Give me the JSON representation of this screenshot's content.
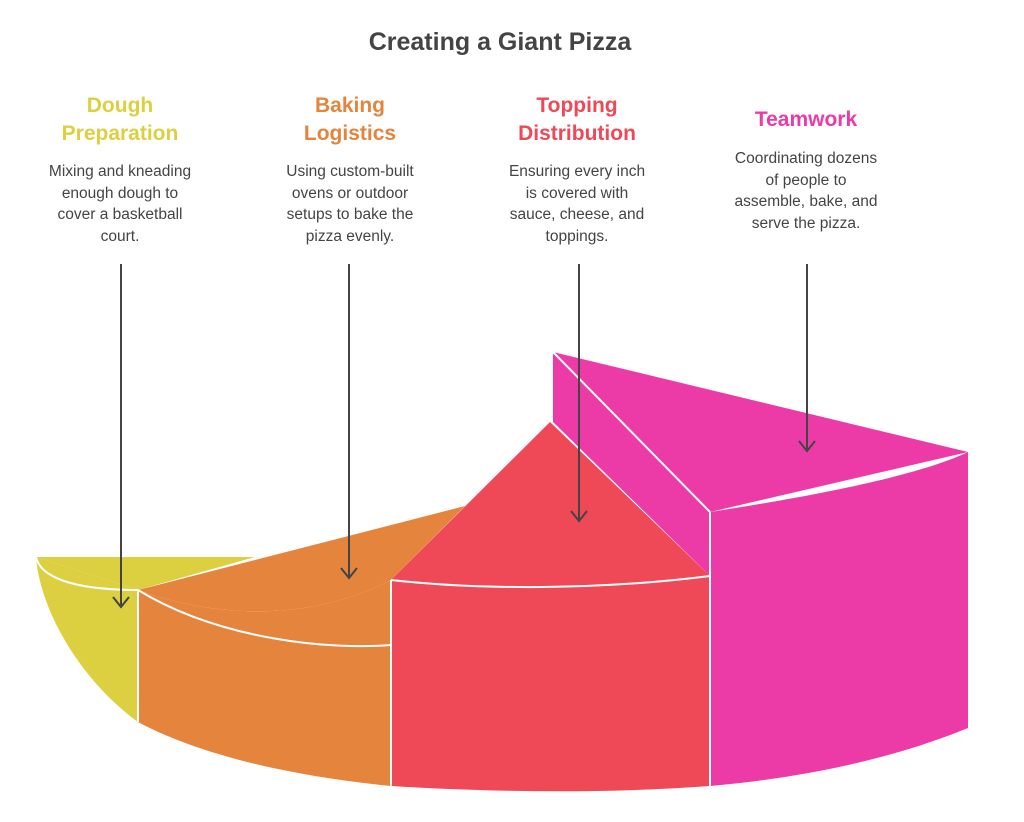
{
  "title": "Creating a Giant Pizza",
  "steps": [
    {
      "heading_line1": "Dough",
      "heading_line2": "Preparation",
      "desc_lines": [
        "Mixing and kneading",
        "enough dough to",
        "cover a basketball",
        "court."
      ],
      "color": "#DDD040",
      "side_color": "#DDD040"
    },
    {
      "heading_line1": "Baking",
      "heading_line2": "Logistics",
      "desc_lines": [
        "Using custom-built",
        "ovens or outdoor",
        "setups to bake the",
        "pizza evenly."
      ],
      "color": "#E5843D",
      "side_color": "#E5843D"
    },
    {
      "heading_line1": "Topping",
      "heading_line2": "Distribution",
      "desc_lines": [
        "Ensuring every inch",
        "is covered with",
        "sauce, cheese, and",
        "toppings."
      ],
      "color": "#EF4856",
      "side_color": "#EF4856"
    },
    {
      "heading_line1": "Teamwork",
      "heading_line2": "",
      "desc_lines": [
        "Coordinating dozens",
        "of people to",
        "assemble, bake, and",
        "serve the pizza."
      ],
      "color": "#EC3BA6",
      "side_color": "#EC3BA6"
    }
  ]
}
